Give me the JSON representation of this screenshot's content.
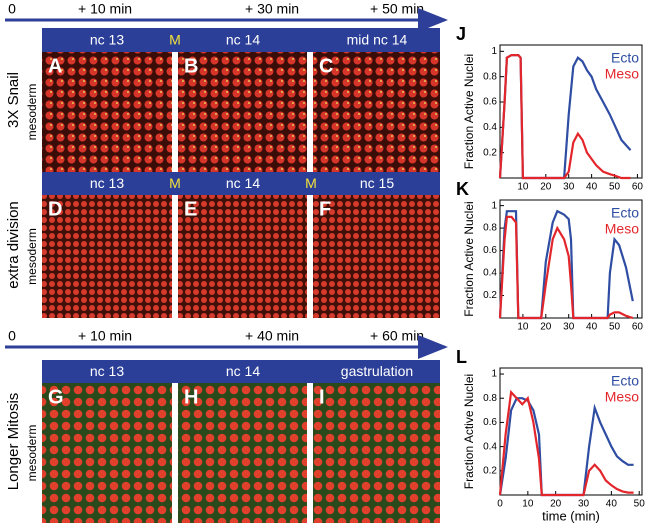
{
  "figure": {
    "rows": [
      {
        "timeline": [
          "0",
          "+ 10 min",
          "+ 30 min",
          "+ 50 min"
        ],
        "headers": [
          "nc 13",
          "M",
          "nc 14",
          "mid nc 14"
        ],
        "panels": [
          "A",
          "B",
          "C"
        ],
        "label": "3X Snail",
        "sublabel": "mesoderm"
      },
      {
        "headers": [
          "nc 13",
          "M",
          "nc 14",
          "M",
          "nc 15"
        ],
        "panels": [
          "D",
          "E",
          "F"
        ],
        "label": "extra division",
        "sublabel": "mesoderm"
      },
      {
        "timeline": [
          "0",
          "+ 10 min",
          "+ 40 min",
          "+ 60 min"
        ],
        "headers": [
          "nc 13",
          "nc 14",
          "gastrulation"
        ],
        "panels": [
          "G",
          "H",
          "I"
        ],
        "label": "Longer Mitosis",
        "sublabel": "mesoderm"
      }
    ]
  },
  "chart_data": [
    {
      "type": "line",
      "label": "J",
      "ylabel": "Fraction Active Nuclei",
      "x": [
        0,
        2,
        3,
        5,
        8,
        9,
        10,
        12,
        20,
        28,
        30,
        32,
        34,
        36,
        38,
        40,
        42,
        45,
        48,
        50,
        53,
        57
      ],
      "series": [
        {
          "name": "Ecto",
          "color": "#2e4da3",
          "values": [
            0,
            0.6,
            0.95,
            0.97,
            0.97,
            0.95,
            0,
            0,
            0,
            0,
            0.5,
            0.88,
            0.95,
            0.92,
            0.85,
            0.8,
            0.7,
            0.6,
            0.5,
            0.42,
            0.3,
            0.22
          ]
        },
        {
          "name": "Meso",
          "color": "#e3262b",
          "values": [
            0,
            0.6,
            0.95,
            0.97,
            0.97,
            0.95,
            0,
            0,
            0,
            0,
            0.05,
            0.28,
            0.35,
            0.3,
            0.2,
            0.15,
            0.1,
            0.05,
            0.03,
            0.02,
            0,
            0
          ]
        }
      ],
      "xlim": [
        0,
        62
      ],
      "xticks": [
        10,
        20,
        30,
        40,
        50,
        60
      ],
      "ylim": [
        0,
        1.05
      ],
      "yticks": [
        0.2,
        0.4,
        0.6,
        0.8,
        1
      ]
    },
    {
      "type": "line",
      "label": "K",
      "ylabel": "Fraction Active Nuclei",
      "x": [
        0,
        2,
        3,
        5,
        7,
        8,
        15,
        18,
        20,
        23,
        25,
        28,
        30,
        31,
        32,
        40,
        45,
        47,
        48,
        50,
        52,
        55,
        58
      ],
      "series": [
        {
          "name": "Ecto",
          "color": "#2e4da3",
          "values": [
            0,
            0.8,
            0.95,
            0.95,
            0.95,
            0,
            0,
            0,
            0.5,
            0.85,
            0.95,
            0.92,
            0.88,
            0.7,
            0,
            0,
            0,
            0,
            0.4,
            0.7,
            0.65,
            0.45,
            0.15
          ]
        },
        {
          "name": "Meso",
          "color": "#e3262b",
          "values": [
            0,
            0.7,
            0.9,
            0.9,
            0.85,
            0,
            0,
            0,
            0.3,
            0.7,
            0.8,
            0.7,
            0.55,
            0.3,
            0,
            0,
            0,
            0,
            0.03,
            0.05,
            0.05,
            0.02,
            0
          ]
        }
      ],
      "xlim": [
        0,
        62
      ],
      "xticks": [
        10,
        20,
        30,
        40,
        50,
        60
      ],
      "ylim": [
        0,
        1.05
      ],
      "yticks": [
        0.2,
        0.4,
        0.6,
        0.8,
        1
      ]
    },
    {
      "type": "line",
      "label": "L",
      "ylabel": "Fraction Active Nuclei",
      "xlabel": "time (min)",
      "x": [
        0,
        2,
        4,
        6,
        8,
        10,
        12,
        14,
        15,
        20,
        30,
        32,
        34,
        36,
        38,
        40,
        42,
        44,
        46,
        48
      ],
      "series": [
        {
          "name": "Ecto",
          "color": "#2e4da3",
          "values": [
            0,
            0.3,
            0.7,
            0.8,
            0.8,
            0.78,
            0.7,
            0.5,
            0,
            0,
            0,
            0.4,
            0.72,
            0.6,
            0.5,
            0.4,
            0.32,
            0.28,
            0.25,
            0.25
          ]
        },
        {
          "name": "Meso",
          "color": "#e3262b",
          "values": [
            0,
            0.5,
            0.85,
            0.8,
            0.75,
            0.8,
            0.6,
            0.3,
            0,
            0,
            0,
            0.2,
            0.25,
            0.2,
            0.12,
            0.08,
            0.05,
            0.03,
            0.02,
            0.02
          ]
        }
      ],
      "xlim": [
        0,
        51
      ],
      "xticks": [
        0,
        10,
        20,
        30,
        40,
        50
      ],
      "ylim": [
        0,
        1.05
      ],
      "yticks": [
        0.2,
        0.4,
        0.6,
        0.8,
        1
      ]
    }
  ]
}
